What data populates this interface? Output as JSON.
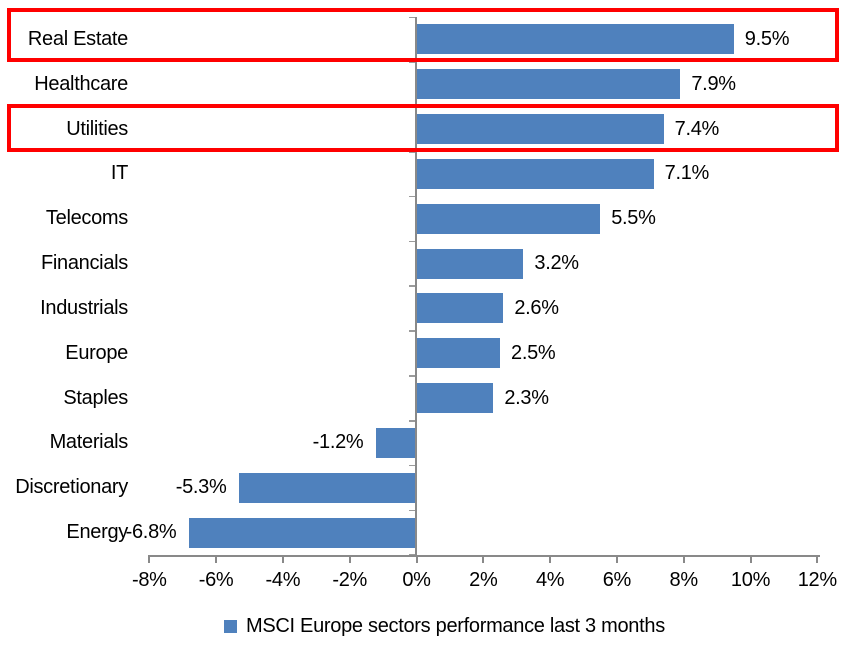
{
  "chart_data": {
    "type": "bar",
    "orientation": "horizontal",
    "title": "",
    "categories": [
      "Real Estate",
      "Healthcare",
      "Utilities",
      "IT",
      "Telecoms",
      "Financials",
      "Industrials",
      "Europe",
      "Staples",
      "Materials",
      "Discretionary",
      "Energy"
    ],
    "values": [
      9.5,
      7.9,
      7.4,
      7.1,
      5.5,
      3.2,
      2.6,
      2.5,
      2.3,
      -1.2,
      -5.3,
      -6.8
    ],
    "value_labels": [
      "9.5%",
      "7.9%",
      "7.4%",
      "7.1%",
      "5.5%",
      "3.2%",
      "2.6%",
      "2.5%",
      "2.3%",
      "-1.2%",
      "-5.3%",
      "-6.8%"
    ],
    "xlim": [
      -8,
      12
    ],
    "x_tick_values": [
      -8,
      -6,
      -4,
      -2,
      0,
      2,
      4,
      6,
      8,
      10,
      12
    ],
    "x_tick_labels": [
      "-8%",
      "-6%",
      "-4%",
      "-2%",
      "0%",
      "2%",
      "4%",
      "6%",
      "8%",
      "10%",
      "12%"
    ],
    "grid": false,
    "legend": "MSCI Europe sectors performance last 3 months",
    "legend_position": "bottom",
    "bar_color": "#4F81BD",
    "axis_color": "#898989",
    "row_tick_color": "#9B9B9B",
    "text_color": "#000000",
    "background_color": "#FFFFFF",
    "highlighted_categories": [
      "Real Estate",
      "Utilities"
    ],
    "highlight_color": "#FF0000"
  }
}
